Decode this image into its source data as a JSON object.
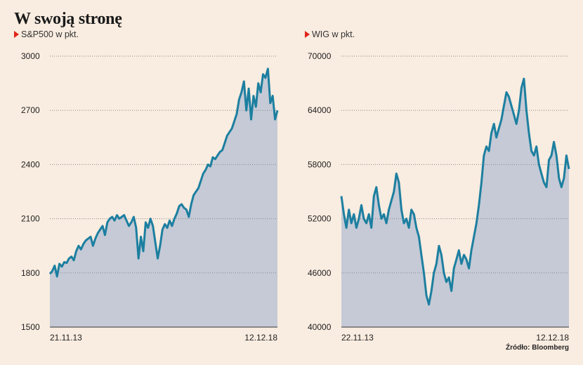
{
  "title": "W swoją stronę",
  "source": "Źródło: Bloomberg",
  "colors": {
    "line": "#1c7fa0",
    "fill": "#c5cad6",
    "background": "#f9ece0",
    "marker": "#e2231a"
  },
  "chart_data": [
    {
      "type": "area",
      "subtitle": "S&P500 w pkt.",
      "ylim": [
        1500,
        3000
      ],
      "yticks": [
        "3000",
        "2700",
        "2400",
        "2100",
        "1800",
        "1500"
      ],
      "x_start_label": "21.11.13",
      "x_end_label": "12.12.18",
      "values": [
        1795,
        1810,
        1840,
        1780,
        1850,
        1835,
        1860,
        1855,
        1880,
        1890,
        1870,
        1920,
        1950,
        1930,
        1960,
        1980,
        1990,
        2000,
        1950,
        1990,
        2020,
        2040,
        2060,
        2010,
        2080,
        2100,
        2110,
        2090,
        2120,
        2100,
        2110,
        2120,
        2090,
        2060,
        2080,
        2110,
        2050,
        1880,
        2000,
        1920,
        2080,
        2050,
        2100,
        2060,
        1970,
        1880,
        1950,
        2040,
        2070,
        2050,
        2090,
        2060,
        2100,
        2130,
        2170,
        2180,
        2160,
        2150,
        2110,
        2180,
        2230,
        2250,
        2270,
        2310,
        2350,
        2370,
        2400,
        2390,
        2440,
        2430,
        2450,
        2470,
        2480,
        2520,
        2560,
        2580,
        2600,
        2640,
        2680,
        2760,
        2800,
        2860,
        2700,
        2820,
        2650,
        2780,
        2720,
        2850,
        2800,
        2900,
        2880,
        2930,
        2740,
        2780,
        2650,
        2700
      ]
    },
    {
      "type": "area",
      "subtitle": "WIG w pkt.",
      "ylim": [
        40000,
        70000
      ],
      "yticks": [
        "70000",
        "64000",
        "58000",
        "52000",
        "46000",
        "40000"
      ],
      "x_start_label": "22.11.13",
      "x_end_label": "12.12.18",
      "values": [
        54500,
        52500,
        51000,
        53000,
        51500,
        52500,
        51000,
        52000,
        53500,
        52000,
        51500,
        52500,
        51000,
        54500,
        55500,
        53500,
        52000,
        52500,
        51500,
        53000,
        54000,
        55000,
        57000,
        56000,
        53000,
        51500,
        52000,
        51000,
        53000,
        52500,
        51000,
        50000,
        48000,
        46000,
        43500,
        42500,
        44000,
        46000,
        47000,
        49000,
        48000,
        46000,
        45000,
        45500,
        44000,
        46500,
        47500,
        48500,
        47000,
        48000,
        47500,
        46500,
        48500,
        50000,
        51500,
        53500,
        56000,
        59000,
        60000,
        59500,
        61500,
        62500,
        61000,
        62000,
        63000,
        64500,
        66000,
        65500,
        64500,
        63500,
        62500,
        64000,
        66500,
        67500,
        64000,
        61500,
        59500,
        59000,
        60000,
        58000,
        57000,
        56000,
        55500,
        58500,
        59000,
        60500,
        59000,
        56500,
        55500,
        56500,
        59000,
        57500
      ]
    }
  ]
}
